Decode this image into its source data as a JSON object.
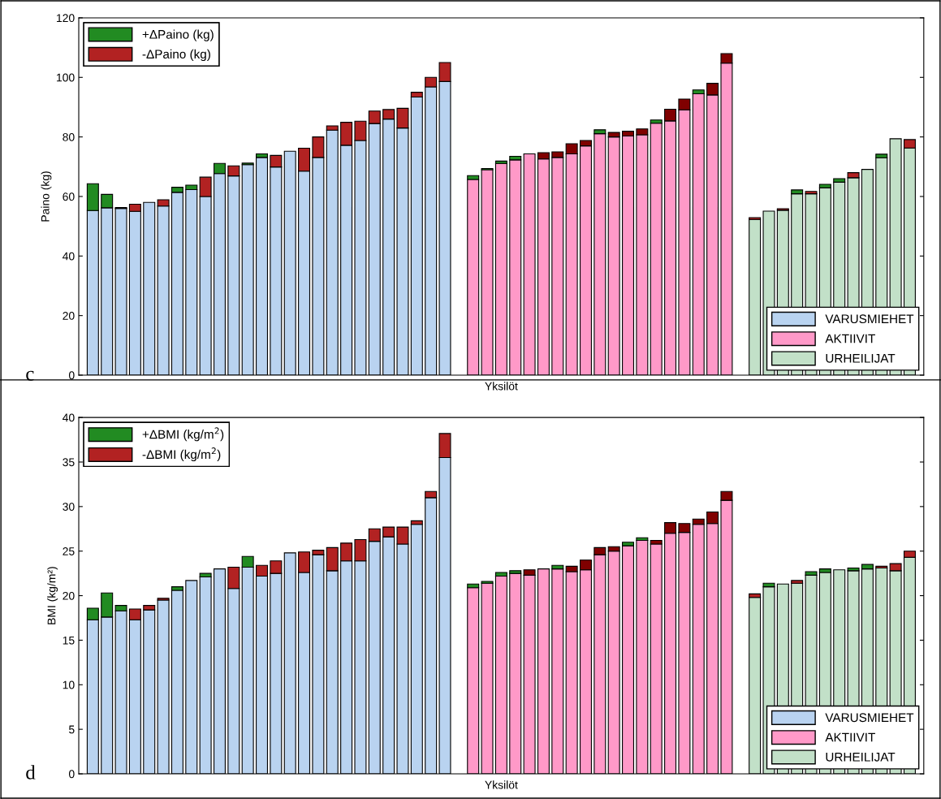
{
  "chart_data": [
    {
      "type": "bar",
      "stacked": true,
      "ylabel": "Paino (kg)",
      "xlabel": "Yksilöt",
      "annotations": [
        "c"
      ],
      "ylim": [
        0,
        120
      ],
      "yticks": [
        0,
        20,
        40,
        60,
        80,
        100,
        120
      ],
      "grid": false,
      "tick_labels": "y",
      "legend": [
        "top left",
        "bottom right"
      ],
      "categories": [
        null,
        null,
        null,
        null,
        null,
        null,
        null,
        null,
        null,
        null,
        null,
        null,
        null,
        null,
        null,
        null,
        null,
        null,
        null,
        null,
        null,
        null,
        null,
        null,
        null,
        null,
        null,
        null,
        null,
        null,
        null,
        null,
        null,
        null,
        null,
        null,
        null,
        null,
        null,
        null,
        null,
        null,
        null,
        null,
        null,
        null,
        null,
        null,
        null,
        null,
        null,
        null,
        null,
        null,
        null,
        null,
        null,
        null,
        null
      ],
      "series": [
        {
          "name": "VARUSMIEHET",
          "color": "#b9d3f0",
          "values": [
            55.3,
            56.2,
            56.0,
            55.0,
            58.0,
            56.8,
            61.4,
            62.3,
            60.0,
            67.7,
            66.9,
            70.7,
            73.1,
            69.9,
            75.2,
            68.5,
            73.1,
            82.3,
            77.2,
            78.8,
            84.5,
            86.0,
            83.0,
            93.4,
            96.8,
            98.6,
            null,
            null,
            null,
            null,
            null,
            null,
            null,
            null,
            null,
            null,
            null,
            null,
            null,
            null,
            null,
            null,
            null,
            null,
            null,
            null,
            null,
            null,
            null,
            null,
            null,
            null,
            null,
            null,
            null,
            null,
            null,
            null,
            null
          ]
        },
        {
          "name": "AKTIIVIT",
          "color": "#ff99c8",
          "values": [
            null,
            null,
            null,
            null,
            null,
            null,
            null,
            null,
            null,
            null,
            null,
            null,
            null,
            null,
            null,
            null,
            null,
            null,
            null,
            null,
            null,
            null,
            null,
            null,
            null,
            null,
            null,
            65.7,
            69.0,
            71.1,
            72.3,
            74.3,
            72.6,
            73.1,
            74.3,
            77.0,
            81.1,
            80.0,
            80.3,
            80.7,
            84.6,
            85.4,
            89.1,
            94.5,
            94.1,
            104.8,
            null,
            null,
            null,
            null,
            null,
            null,
            null,
            null,
            null,
            null,
            null,
            null,
            null
          ]
        },
        {
          "name": "URHEILIJAT",
          "color": "#c2e0c8",
          "values": [
            null,
            null,
            null,
            null,
            null,
            null,
            null,
            null,
            null,
            null,
            null,
            null,
            null,
            null,
            null,
            null,
            null,
            null,
            null,
            null,
            null,
            null,
            null,
            null,
            null,
            null,
            null,
            null,
            null,
            null,
            null,
            null,
            null,
            null,
            null,
            null,
            null,
            null,
            null,
            null,
            null,
            null,
            null,
            null,
            null,
            null,
            null,
            52.3,
            55.1,
            55.4,
            60.9,
            60.9,
            62.9,
            64.8,
            66.3,
            69.1,
            73.0,
            79.4,
            76.3
          ]
        },
        {
          "name": "+ΔPaino (kg)",
          "color": "#228b22",
          "values": [
            9.0,
            4.5,
            0.3,
            null,
            null,
            null,
            1.7,
            1.5,
            null,
            3.4,
            null,
            0.5,
            1.2,
            null,
            null,
            null,
            null,
            null,
            null,
            null,
            null,
            null,
            null,
            null,
            null,
            null,
            null,
            1.3,
            0.4,
            0.8,
            1.2,
            null,
            null,
            null,
            null,
            null,
            1.3,
            null,
            null,
            null,
            1.1,
            null,
            null,
            1.3,
            null,
            null,
            null,
            null,
            null,
            null,
            1.3,
            null,
            1.2,
            1.2,
            null,
            null,
            1.2,
            null,
            null
          ]
        },
        {
          "name": "-ΔPaino (kg)",
          "color": "#b22222",
          "values": [
            null,
            null,
            null,
            2.4,
            null,
            2.1,
            null,
            null,
            6.5,
            null,
            3.4,
            null,
            null,
            3.9,
            null,
            7.7,
            6.9,
            1.4,
            7.7,
            6.5,
            4.2,
            3.2,
            6.6,
            1.6,
            3.2,
            6.4,
            null,
            null,
            null,
            null,
            null,
            null,
            2.1,
            1.9,
            3.4,
            1.8,
            null,
            1.5,
            1.6,
            2.0,
            null,
            3.9,
            3.6,
            null,
            3.9,
            3.2,
            null,
            0.6,
            null,
            0.5,
            null,
            0.8,
            null,
            null,
            1.7,
            null,
            null,
            null,
            2.8
          ],
          "colors": [
            "#b22222",
            "#b22222",
            "#b22222",
            "#b22222",
            "#b22222",
            "#b22222",
            "#b22222",
            "#b22222",
            "#b22222",
            "#b22222",
            "#b22222",
            "#b22222",
            "#b22222",
            "#b22222",
            "#b22222",
            "#b22222",
            "#b22222",
            "#b22222",
            "#b22222",
            "#b22222",
            "#b22222",
            "#b22222",
            "#b22222",
            "#b22222",
            "#b22222",
            "#b22222",
            "#b22222",
            "#800000",
            "#800000",
            "#800000",
            "#800000",
            "#800000",
            "#800000",
            "#800000",
            "#800000",
            "#800000",
            "#800000",
            "#800000",
            "#800000",
            "#800000",
            "#800000",
            "#800000",
            "#800000",
            "#800000",
            "#800000",
            "#800000",
            "#b22222",
            "#b22222",
            "#b22222",
            "#b22222",
            "#b22222",
            "#b22222",
            "#b22222",
            "#b22222",
            "#b22222",
            "#b22222",
            "#b22222",
            "#b22222",
            "#b22222"
          ]
        }
      ]
    },
    {
      "type": "bar",
      "stacked": true,
      "ylabel": "BMI (kg/m²)",
      "xlabel": "Yksilöt",
      "annotations": [
        "d"
      ],
      "ylim": [
        0,
        40
      ],
      "yticks": [
        0,
        5,
        10,
        15,
        20,
        25,
        30,
        35,
        40
      ],
      "grid": false,
      "tick_labels": "y",
      "legend": [
        "top left",
        "bottom right"
      ],
      "categories": [
        null,
        null,
        null,
        null,
        null,
        null,
        null,
        null,
        null,
        null,
        null,
        null,
        null,
        null,
        null,
        null,
        null,
        null,
        null,
        null,
        null,
        null,
        null,
        null,
        null,
        null,
        null,
        null,
        null,
        null,
        null,
        null,
        null,
        null,
        null,
        null,
        null,
        null,
        null,
        null,
        null,
        null,
        null,
        null,
        null,
        null,
        null,
        null,
        null,
        null,
        null,
        null,
        null,
        null,
        null,
        null,
        null,
        null,
        null
      ],
      "series": [
        {
          "name": "VARUSMIEHET",
          "color": "#b9d3f0",
          "values": [
            17.3,
            17.6,
            18.3,
            17.3,
            18.4,
            19.5,
            20.6,
            21.7,
            22.1,
            23.0,
            20.8,
            23.2,
            22.2,
            22.5,
            24.8,
            22.6,
            24.6,
            22.8,
            23.9,
            23.9,
            26.1,
            26.6,
            25.8,
            28.0,
            31.0,
            35.5,
            null,
            null,
            null,
            null,
            null,
            null,
            null,
            null,
            null,
            null,
            null,
            null,
            null,
            null,
            null,
            null,
            null,
            null,
            null,
            null,
            null,
            null,
            null,
            null,
            null,
            null,
            null,
            null,
            null,
            null,
            null,
            null,
            null
          ]
        },
        {
          "name": "AKTIIVIT",
          "color": "#ff99c8",
          "values": [
            null,
            null,
            null,
            null,
            null,
            null,
            null,
            null,
            null,
            null,
            null,
            null,
            null,
            null,
            null,
            null,
            null,
            null,
            null,
            null,
            null,
            null,
            null,
            null,
            null,
            null,
            null,
            20.9,
            21.4,
            22.2,
            22.5,
            22.3,
            23.0,
            23.0,
            22.7,
            22.9,
            24.6,
            25.0,
            25.6,
            26.2,
            25.8,
            27.0,
            27.1,
            28.0,
            28.1,
            30.7,
            null,
            null,
            null,
            null,
            null,
            null,
            null,
            null,
            null,
            null,
            null,
            null,
            null
          ]
        },
        {
          "name": "URHEILIJAT",
          "color": "#c2e0c8",
          "values": [
            null,
            null,
            null,
            null,
            null,
            null,
            null,
            null,
            null,
            null,
            null,
            null,
            null,
            null,
            null,
            null,
            null,
            null,
            null,
            null,
            null,
            null,
            null,
            null,
            null,
            null,
            null,
            null,
            null,
            null,
            null,
            null,
            null,
            null,
            null,
            null,
            null,
            null,
            null,
            null,
            null,
            null,
            null,
            null,
            null,
            null,
            null,
            19.8,
            21.0,
            21.3,
            21.4,
            22.3,
            22.6,
            22.9,
            22.8,
            23.0,
            23.1,
            22.8,
            24.3
          ]
        },
        {
          "name": "+ΔBMI (kg/m$^{2}$)",
          "color": "#228b22",
          "values": [
            1.3,
            2.7,
            0.6,
            null,
            null,
            null,
            0.4,
            null,
            0.4,
            null,
            null,
            1.2,
            null,
            null,
            null,
            null,
            null,
            null,
            null,
            null,
            null,
            null,
            null,
            null,
            null,
            null,
            null,
            0.4,
            0.2,
            0.4,
            0.3,
            null,
            null,
            0.4,
            null,
            null,
            null,
            null,
            0.4,
            0.3,
            null,
            null,
            null,
            null,
            null,
            null,
            null,
            null,
            0.4,
            null,
            null,
            0.4,
            0.4,
            null,
            0.3,
            0.5,
            null,
            null,
            null
          ]
        },
        {
          "name": "-ΔBMI (kg/m$^{2}$)",
          "color": "#b22222",
          "values": [
            null,
            null,
            null,
            1.2,
            0.5,
            0.2,
            null,
            null,
            null,
            null,
            2.4,
            null,
            1.2,
            1.4,
            null,
            2.3,
            0.5,
            2.6,
            2.0,
            2.4,
            1.4,
            1.1,
            1.9,
            0.4,
            0.7,
            2.7,
            null,
            null,
            null,
            null,
            null,
            0.6,
            null,
            null,
            0.6,
            1.1,
            0.8,
            0.5,
            null,
            null,
            0.4,
            1.2,
            1.0,
            0.6,
            1.3,
            1.0,
            null,
            0.4,
            null,
            null,
            0.3,
            null,
            null,
            null,
            null,
            null,
            0.2,
            0.8,
            0.7
          ],
          "colors": [
            "#b22222",
            "#b22222",
            "#b22222",
            "#b22222",
            "#b22222",
            "#b22222",
            "#b22222",
            "#b22222",
            "#b22222",
            "#b22222",
            "#b22222",
            "#b22222",
            "#b22222",
            "#b22222",
            "#b22222",
            "#b22222",
            "#b22222",
            "#b22222",
            "#b22222",
            "#b22222",
            "#b22222",
            "#b22222",
            "#b22222",
            "#b22222",
            "#b22222",
            "#b22222",
            "#b22222",
            "#800000",
            "#800000",
            "#800000",
            "#800000",
            "#800000",
            "#800000",
            "#800000",
            "#800000",
            "#800000",
            "#800000",
            "#800000",
            "#800000",
            "#800000",
            "#800000",
            "#800000",
            "#800000",
            "#800000",
            "#800000",
            "#800000",
            "#b22222",
            "#b22222",
            "#b22222",
            "#b22222",
            "#b22222",
            "#b22222",
            "#b22222",
            "#b22222",
            "#b22222",
            "#b22222",
            "#b22222",
            "#b22222",
            "#b22222"
          ]
        }
      ]
    }
  ]
}
